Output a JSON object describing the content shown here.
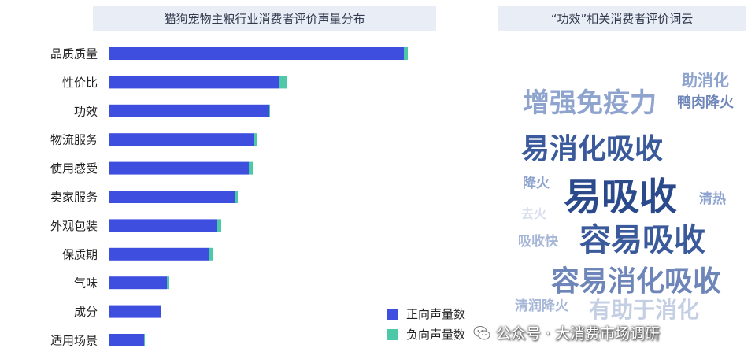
{
  "left_panel": {
    "title": "猫狗宠物主粮行业消费者评价声量分布"
  },
  "right_panel": {
    "title": "“功效”相关消费者评价词云"
  },
  "chart_data": {
    "type": "bar",
    "orientation": "horizontal",
    "stacked": true,
    "title": "猫狗宠物主粮行业消费者评价声量分布",
    "categories": [
      "品质质量",
      "性价比",
      "功效",
      "物流服务",
      "使用感受",
      "卖家服务",
      "外观包装",
      "保质期",
      "气味",
      "成分",
      "适用场景"
    ],
    "series": [
      {
        "name": "正向声量数",
        "color": "#3e4fe0",
        "values": [
          375,
          217,
          204,
          185,
          178,
          161,
          138,
          128,
          74,
          66,
          45
        ]
      },
      {
        "name": "负向声量数",
        "color": "#4ec9a8",
        "values": [
          5,
          9,
          1,
          3,
          5,
          3,
          5,
          4,
          3,
          1,
          1
        ]
      }
    ],
    "xlim": [
      0,
      400
    ],
    "grid": false,
    "legend": "bottom-right"
  },
  "legend": {
    "items": [
      {
        "label": "正向声量数",
        "color": "#3e4fe0"
      },
      {
        "label": "负向声量数",
        "color": "#4ec9a8"
      }
    ]
  },
  "word_cloud": {
    "words": [
      {
        "text": "助消化",
        "color": "#8ea4cf"
      },
      {
        "text": "增强免疫力",
        "color": "#8ea4cf"
      },
      {
        "text": "鸭肉降火",
        "color": "#6d85b8"
      },
      {
        "text": "易消化吸收",
        "color": "#3b5a9c"
      },
      {
        "text": "降火",
        "color": "#8ea4cf"
      },
      {
        "text": "易吸收",
        "color": "#2b4a8c"
      },
      {
        "text": "清热",
        "color": "#8ea4cf"
      },
      {
        "text": "去火",
        "color": "#d8e0ee"
      },
      {
        "text": "吸收快",
        "color": "#a6b6d6"
      },
      {
        "text": "容易吸收",
        "color": "#3b5a9c"
      },
      {
        "text": "容易消化吸收",
        "color": "#6d85b8"
      },
      {
        "text": "清润降火",
        "color": "#a6b6d6"
      },
      {
        "text": "有助于消化",
        "color": "#c4cfe4"
      }
    ]
  },
  "watermark": {
    "text": "公众号 · 大消费市场调研"
  }
}
